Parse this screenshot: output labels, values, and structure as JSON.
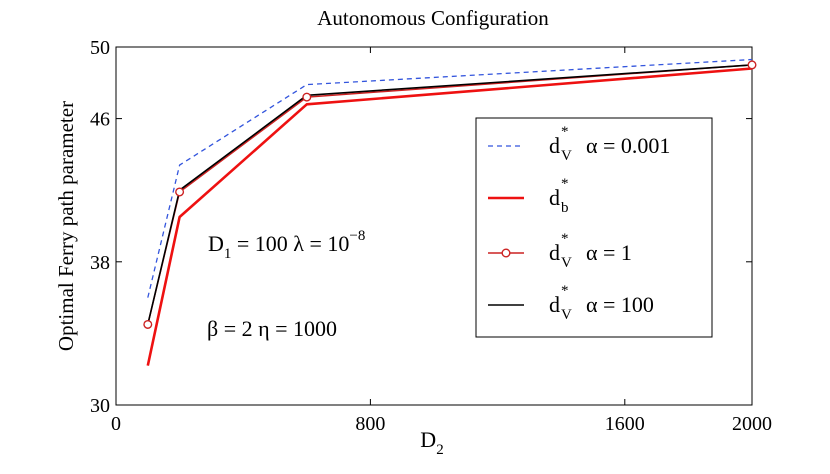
{
  "chart_data": {
    "type": "line",
    "title": "Autonomous Configuration",
    "xlabel": {
      "main": "D",
      "sub": "2"
    },
    "ylabel": "Optimal Ferry path parameter",
    "xlim": [
      0,
      2000
    ],
    "ylim": [
      30,
      50
    ],
    "xticks": [
      0,
      800,
      1600,
      2000
    ],
    "yticks": [
      30,
      38,
      46,
      50
    ],
    "grid": false,
    "legend_position": "right",
    "series": [
      {
        "id": "dv-alpha-0001",
        "style": "dashed",
        "color": "#3355dd",
        "legend": {
          "base": "d",
          "sub": "V",
          "sup": "*",
          "param": "α = 0.001"
        },
        "x": [
          100,
          200,
          600,
          2000
        ],
        "y": [
          36.0,
          43.4,
          47.9,
          49.3
        ]
      },
      {
        "id": "db",
        "style": "solid-thick",
        "color": "#ee1111",
        "legend": {
          "base": "d",
          "sub": "b",
          "sup": "*",
          "param": ""
        },
        "x": [
          100,
          200,
          600,
          2000
        ],
        "y": [
          32.2,
          40.5,
          46.8,
          48.8
        ]
      },
      {
        "id": "dv-alpha-1",
        "style": "solid-markers",
        "color": "#cc2222",
        "legend": {
          "base": "d",
          "sub": "V",
          "sup": "*",
          "param": "α = 1"
        },
        "x": [
          100,
          200,
          600,
          2000
        ],
        "y": [
          34.5,
          41.9,
          47.2,
          49.0
        ]
      },
      {
        "id": "dv-alpha-100",
        "style": "solid",
        "color": "#000000",
        "legend": {
          "base": "d",
          "sub": "V",
          "sup": "*",
          "param": "α = 100"
        },
        "x": [
          100,
          200,
          600,
          2000
        ],
        "y": [
          34.5,
          42.0,
          47.3,
          49.0
        ]
      }
    ],
    "annotations": [
      {
        "id": "annotation-d1-lambda",
        "parts": [
          {
            "t": "D",
            "k": "n"
          },
          {
            "t": "1",
            "k": "sub"
          },
          {
            "t": " = 100 λ = 10",
            "k": "n"
          },
          {
            "t": "−8",
            "k": "sup"
          }
        ]
      },
      {
        "id": "annotation-beta-eta",
        "parts": [
          {
            "t": "β = 2  η = 1000",
            "k": "n"
          }
        ]
      }
    ]
  }
}
